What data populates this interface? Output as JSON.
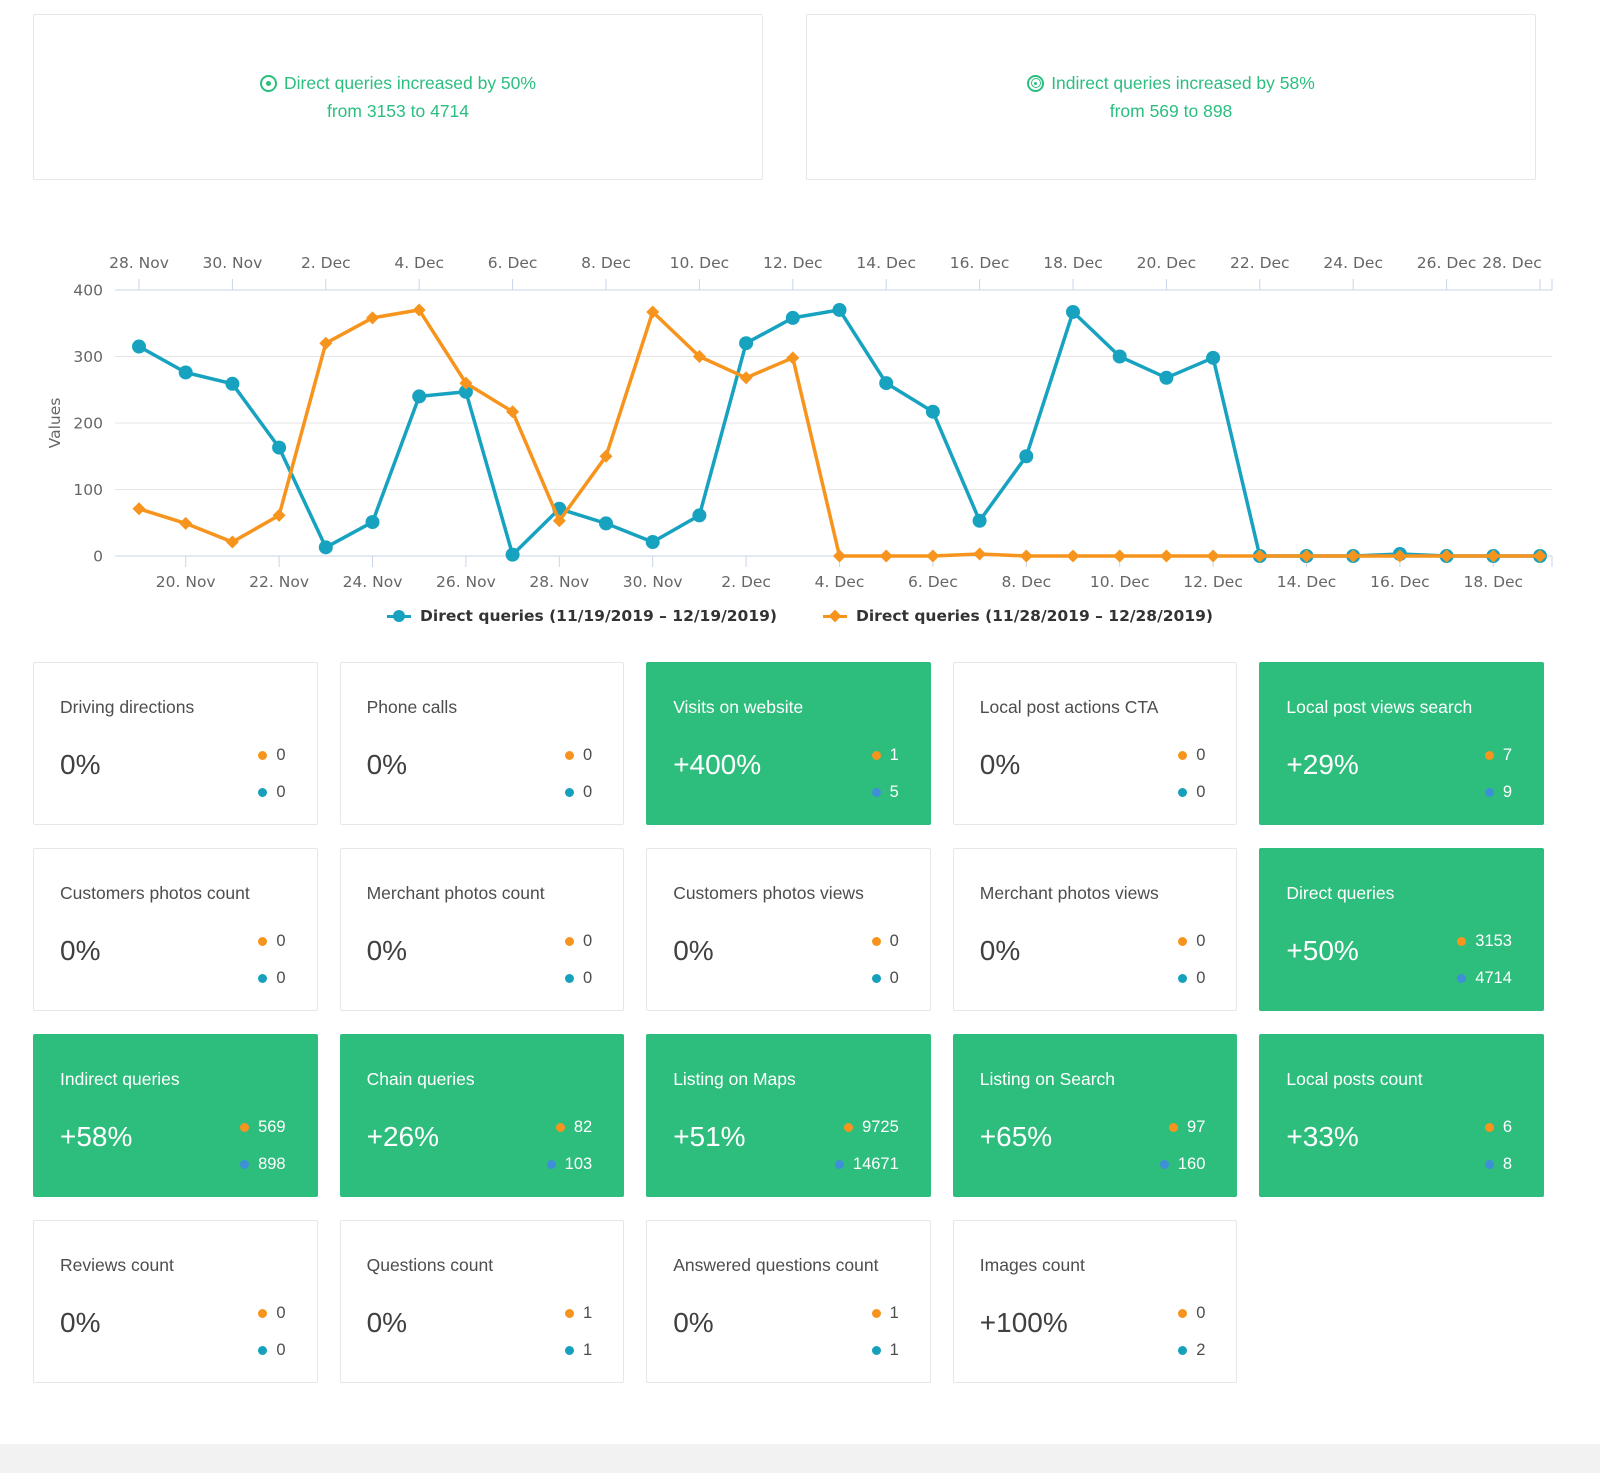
{
  "summary_cards": [
    {
      "icon": "target-dot",
      "line1": "Direct queries increased by 50%",
      "line2": "from 3153 to 4714"
    },
    {
      "icon": "target-rings",
      "line1": "Indirect queries increased by 58%",
      "line2": "from 569 to 898"
    }
  ],
  "chart_data": {
    "type": "line",
    "title": "",
    "ylabel": "Values",
    "ylim": [
      0,
      400
    ],
    "yticks": [
      0,
      100,
      200,
      300,
      400
    ],
    "grid": "on",
    "legend_position": "bottom",
    "top_axis_labels": [
      "28. Nov",
      "30. Nov",
      "2. Dec",
      "4. Dec",
      "6. Dec",
      "8. Dec",
      "10. Dec",
      "12. Dec",
      "14. Dec",
      "16. Dec",
      "18. Dec",
      "20. Dec",
      "22. Dec",
      "24. Dec",
      "26. Dec",
      "28. Dec"
    ],
    "bottom_axis_labels": [
      "20. Nov",
      "22. Nov",
      "24. Nov",
      "26. Nov",
      "28. Nov",
      "30. Nov",
      "2. Dec",
      "4. Dec",
      "6. Dec",
      "8. Dec",
      "10. Dec",
      "12. Dec",
      "14. Dec",
      "16. Dec",
      "18. Dec"
    ],
    "series": [
      {
        "name": "Direct queries (11/19/2019 – 12/19/2019)",
        "period": "11/19/2019 – 12/19/2019",
        "color": "#17a2c0",
        "marker": "circle",
        "values": [
          315,
          276,
          259,
          163,
          13,
          51,
          240,
          247,
          2,
          71,
          49,
          21,
          61,
          320,
          358,
          370,
          260,
          217,
          53,
          150,
          367,
          300,
          268,
          298,
          0,
          0,
          0,
          3,
          0,
          0,
          0
        ]
      },
      {
        "name": "Direct queries (11/28/2019 – 12/28/2019)",
        "period": "11/28/2019 – 12/28/2019",
        "color": "#f7941d",
        "marker": "diamond",
        "values": [
          71,
          49,
          21,
          61,
          320,
          358,
          370,
          260,
          217,
          53,
          150,
          367,
          300,
          268,
          298,
          0,
          0,
          0,
          3,
          0,
          0,
          0,
          0,
          0,
          0,
          0,
          0,
          0,
          0,
          0,
          0
        ]
      }
    ]
  },
  "metric_cards": [
    {
      "title": "Driving directions",
      "percent": "0%",
      "old_value": "0",
      "new_value": "0",
      "highlighted": false
    },
    {
      "title": "Phone calls",
      "percent": "0%",
      "old_value": "0",
      "new_value": "0",
      "highlighted": false
    },
    {
      "title": "Visits on website",
      "percent": "+400%",
      "old_value": "1",
      "new_value": "5",
      "highlighted": true
    },
    {
      "title": "Local post actions CTA",
      "percent": "0%",
      "old_value": "0",
      "new_value": "0",
      "highlighted": false
    },
    {
      "title": "Local post views search",
      "percent": "+29%",
      "old_value": "7",
      "new_value": "9",
      "highlighted": true
    },
    {
      "title": "Customers photos count",
      "percent": "0%",
      "old_value": "0",
      "new_value": "0",
      "highlighted": false
    },
    {
      "title": "Merchant photos count",
      "percent": "0%",
      "old_value": "0",
      "new_value": "0",
      "highlighted": false
    },
    {
      "title": "Customers photos views",
      "percent": "0%",
      "old_value": "0",
      "new_value": "0",
      "highlighted": false
    },
    {
      "title": "Merchant photos views",
      "percent": "0%",
      "old_value": "0",
      "new_value": "0",
      "highlighted": false
    },
    {
      "title": "Direct queries",
      "percent": "+50%",
      "old_value": "3153",
      "new_value": "4714",
      "highlighted": true
    },
    {
      "title": "Indirect queries",
      "percent": "+58%",
      "old_value": "569",
      "new_value": "898",
      "highlighted": true
    },
    {
      "title": "Chain queries",
      "percent": "+26%",
      "old_value": "82",
      "new_value": "103",
      "highlighted": true
    },
    {
      "title": "Listing on Maps",
      "percent": "+51%",
      "old_value": "9725",
      "new_value": "14671",
      "highlighted": true
    },
    {
      "title": "Listing on Search",
      "percent": "+65%",
      "old_value": "97",
      "new_value": "160",
      "highlighted": true
    },
    {
      "title": "Local posts count",
      "percent": "+33%",
      "old_value": "6",
      "new_value": "8",
      "highlighted": true
    },
    {
      "title": "Reviews count",
      "percent": "0%",
      "old_value": "0",
      "new_value": "0",
      "highlighted": false
    },
    {
      "title": "Questions count",
      "percent": "0%",
      "old_value": "1",
      "new_value": "1",
      "highlighted": false
    },
    {
      "title": "Answered questions count",
      "percent": "0%",
      "old_value": "1",
      "new_value": "1",
      "highlighted": false
    },
    {
      "title": "Images count",
      "percent": "+100%",
      "old_value": "0",
      "new_value": "2",
      "highlighted": false
    }
  ],
  "colors": {
    "green": "#2dbd7c",
    "teal": "#17a2c0",
    "orange": "#f7941d",
    "blue_on_green": "#3f8fd8",
    "axis_line": "#c9d6ea",
    "grid_line": "#e6e6e6"
  }
}
